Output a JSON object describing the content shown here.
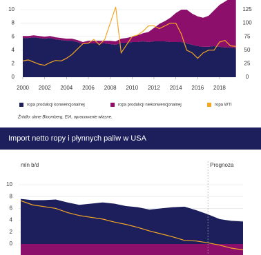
{
  "chart_data": [
    {
      "type": "area",
      "stacked": true,
      "grid": true,
      "x": [
        2000,
        2000.5,
        2001,
        2001.5,
        2002,
        2002.5,
        2003,
        2003.5,
        2004,
        2004.5,
        2005,
        2005.5,
        2006,
        2006.5,
        2007,
        2007.5,
        2008,
        2008.5,
        2009,
        2009.5,
        2010,
        2010.5,
        2011,
        2011.5,
        2012,
        2012.5,
        2013,
        2013.5,
        2014,
        2014.5,
        2015,
        2015.5,
        2016,
        2016.5,
        2017,
        2017.5,
        2018,
        2018.5,
        2019,
        2019.5
      ],
      "xlim": [
        2000,
        2019.5
      ],
      "xticks": [
        2000,
        2002,
        2004,
        2006,
        2008,
        2010,
        2012,
        2014,
        2016,
        2018
      ],
      "ylim": [
        0,
        12
      ],
      "yticks": [
        0,
        2,
        4,
        6,
        8,
        10
      ],
      "y2lim": [
        0,
        150
      ],
      "y2ticks": [
        0,
        25,
        50,
        75,
        100,
        125
      ],
      "series": [
        {
          "name": "ropa produkcji konwencjonalnej",
          "color": "#1c1f5c",
          "kind": "area",
          "values": [
            5.8,
            5.8,
            5.9,
            5.8,
            5.7,
            5.8,
            5.6,
            5.5,
            5.4,
            5.4,
            5.2,
            4.9,
            5.0,
            5.0,
            5.0,
            5.0,
            4.9,
            4.8,
            5.1,
            5.1,
            5.2,
            5.2,
            5.3,
            5.2,
            5.3,
            5.3,
            5.3,
            5.2,
            5.2,
            5.2,
            5.0,
            4.8,
            4.6,
            4.5,
            4.5,
            4.6,
            4.5,
            4.4,
            4.4,
            4.3
          ]
        },
        {
          "name": "ropa produkcji niekonwencjonalnej",
          "color": "#8c0f6b",
          "kind": "area",
          "values": [
            0.3,
            0.3,
            0.3,
            0.3,
            0.3,
            0.3,
            0.3,
            0.3,
            0.3,
            0.3,
            0.3,
            0.3,
            0.4,
            0.4,
            0.4,
            0.4,
            0.5,
            0.5,
            0.6,
            0.7,
            0.8,
            1.0,
            1.2,
            1.5,
            2.0,
            2.6,
            3.0,
            3.6,
            4.3,
            4.8,
            5.0,
            4.6,
            4.4,
            4.3,
            4.6,
            5.3,
            6.2,
            6.8,
            7.3,
            7.8
          ]
        },
        {
          "name": "ropa WTI",
          "color": "#f5a623",
          "kind": "line",
          "axis": "y2",
          "values": [
            30,
            32,
            28,
            24,
            22,
            27,
            31,
            30,
            35,
            42,
            52,
            62,
            63,
            70,
            60,
            70,
            100,
            130,
            45,
            60,
            75,
            78,
            85,
            95,
            95,
            90,
            95,
            100,
            100,
            80,
            50,
            45,
            35,
            45,
            50,
            50,
            65,
            68,
            58,
            57
          ]
        }
      ],
      "source": "Źródło: dane Bloomberg, EIA, opracowanie własne."
    },
    {
      "type": "area",
      "stacked": false,
      "grid": true,
      "title": "Import netto ropy i płynnych paliw w USA",
      "ylabel": "mln b/d",
      "annotation": "Prognoza",
      "forecast_x": 2018,
      "x": [
        2002,
        2003,
        2004,
        2005,
        2006,
        2007,
        2008,
        2009,
        2010,
        2011,
        2012,
        2013,
        2014,
        2015,
        2016,
        2017,
        2018,
        2019,
        2020,
        2021
      ],
      "xlim": [
        2002,
        2021
      ],
      "ylim": [
        -2,
        10
      ],
      "yticks": [
        0,
        2,
        4,
        6,
        8,
        10
      ],
      "series": [
        {
          "color": "#1c1f5c",
          "kind": "area",
          "values": [
            7.6,
            7.4,
            7.4,
            7.5,
            7.0,
            6.6,
            6.8,
            7.0,
            6.8,
            6.4,
            6.2,
            5.8,
            6.0,
            6.2,
            6.3,
            5.7,
            5.0,
            4.2,
            3.9,
            3.8
          ]
        },
        {
          "color": "#8c0f6b",
          "kind": "area",
          "values": [
            -1.9,
            -1.9,
            -1.9,
            -1.9,
            -1.9,
            -1.9,
            -1.9,
            -1.9,
            -1.9,
            -1.9,
            -1.9,
            -1.9,
            -1.9,
            -1.9,
            -1.9,
            -1.9,
            -1.9,
            -1.9,
            -1.9,
            -1.9
          ]
        },
        {
          "color": "#f5a623",
          "kind": "line",
          "values": [
            7.3,
            6.6,
            6.3,
            6.0,
            5.3,
            4.8,
            4.5,
            4.2,
            3.7,
            3.3,
            2.8,
            2.2,
            1.7,
            1.2,
            0.6,
            0.5,
            0.2,
            -0.2,
            -0.7,
            -1.0
          ]
        }
      ]
    }
  ]
}
